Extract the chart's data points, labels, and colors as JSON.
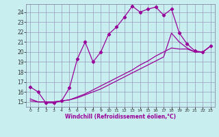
{
  "xlabel": "Windchill (Refroidissement éolien,°C)",
  "xlim": [
    -0.5,
    23.5
  ],
  "ylim": [
    14.5,
    24.8
  ],
  "xticks": [
    0,
    1,
    2,
    3,
    4,
    5,
    6,
    7,
    8,
    9,
    10,
    11,
    12,
    13,
    14,
    15,
    16,
    17,
    18,
    19,
    20,
    21,
    22,
    23
  ],
  "yticks": [
    15,
    16,
    17,
    18,
    19,
    20,
    21,
    22,
    23,
    24
  ],
  "bg_color": "#c8eef0",
  "line_color": "#990099",
  "grid_color": "#9999bb",
  "lines": [
    {
      "x": [
        0,
        1,
        2,
        3,
        4,
        5,
        6,
        7,
        8,
        9,
        10,
        11,
        12,
        13,
        14,
        15,
        16,
        17,
        18,
        19,
        20,
        21,
        22,
        23
      ],
      "y": [
        16.5,
        16.0,
        14.9,
        14.9,
        15.1,
        16.4,
        19.3,
        21.0,
        19.0,
        20.0,
        21.8,
        22.5,
        23.5,
        24.6,
        24.0,
        24.3,
        24.5,
        23.7,
        24.3,
        21.9,
        20.8,
        20.1,
        20.0,
        20.6
      ],
      "marker": true
    },
    {
      "x": [
        0,
        1,
        2,
        3,
        4,
        5,
        6,
        7,
        8,
        9,
        10,
        11,
        12,
        13,
        14,
        15,
        16,
        17,
        18,
        19,
        20,
        21,
        22,
        23
      ],
      "y": [
        15.1,
        15.0,
        15.0,
        15.0,
        15.1,
        15.2,
        15.4,
        15.7,
        16.0,
        16.3,
        16.7,
        17.1,
        17.5,
        17.9,
        18.3,
        18.7,
        19.1,
        19.5,
        21.9,
        21.0,
        20.4,
        20.0,
        20.0,
        20.6
      ],
      "marker": false
    },
    {
      "x": [
        0,
        1,
        2,
        3,
        4,
        5,
        6,
        7,
        8,
        9,
        10,
        11,
        12,
        13,
        14,
        15,
        16,
        17,
        18,
        19,
        20,
        21,
        22,
        23
      ],
      "y": [
        15.3,
        15.0,
        15.0,
        15.0,
        15.1,
        15.2,
        15.5,
        15.8,
        16.2,
        16.6,
        17.0,
        17.4,
        17.8,
        18.2,
        18.7,
        19.1,
        19.6,
        20.0,
        20.4,
        20.3,
        20.3,
        20.0,
        20.0,
        20.6
      ],
      "marker": false
    }
  ]
}
